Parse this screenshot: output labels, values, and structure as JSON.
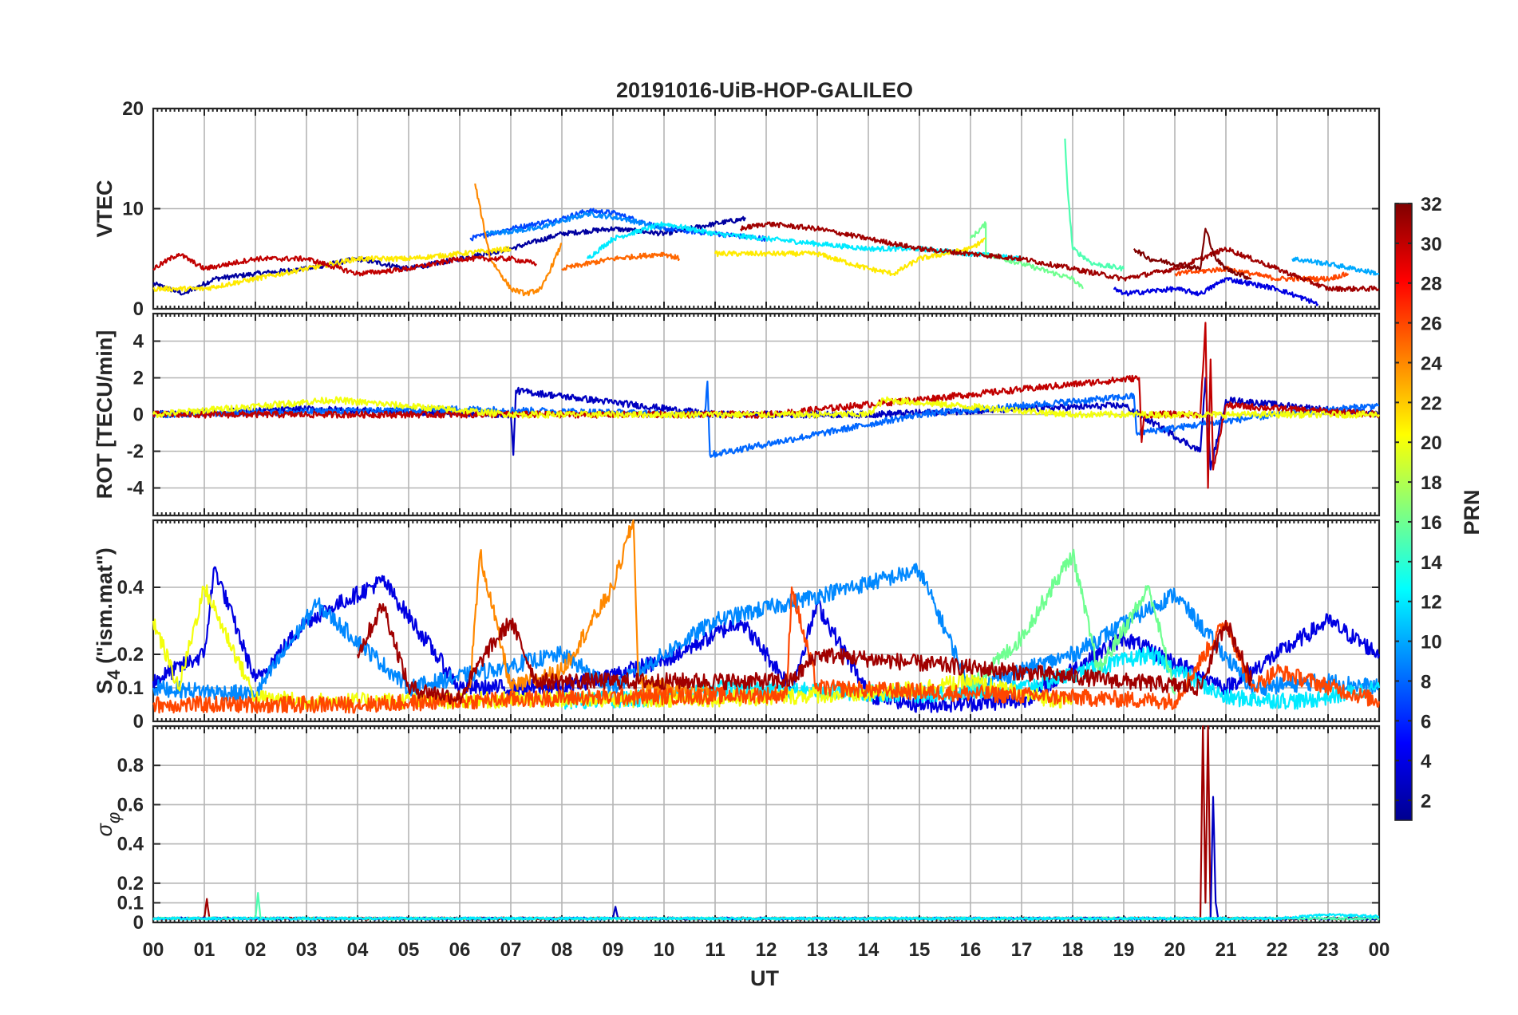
{
  "title": "20191016-UiB-HOP-GALILEO",
  "xaxis": {
    "label": "UT",
    "ticks": [
      "00",
      "01",
      "02",
      "03",
      "04",
      "05",
      "06",
      "07",
      "08",
      "09",
      "10",
      "11",
      "12",
      "13",
      "14",
      "15",
      "16",
      "17",
      "18",
      "19",
      "20",
      "21",
      "22",
      "23",
      "00"
    ]
  },
  "colorbar": {
    "label": "PRN",
    "range": [
      1,
      32
    ],
    "ticks": [
      "2",
      "4",
      "6",
      "8",
      "10",
      "12",
      "14",
      "16",
      "18",
      "20",
      "22",
      "24",
      "26",
      "28",
      "30",
      "32"
    ],
    "colormap": "jet",
    "colors": [
      "#00008f",
      "#0000ff",
      "#0080ff",
      "#00ffff",
      "#80ff80",
      "#ffff00",
      "#ff8000",
      "#ff0000",
      "#800000"
    ]
  },
  "chart_data": [
    {
      "type": "line",
      "id": "vtec",
      "ylabel": "VTEC",
      "ylim": [
        0,
        20
      ],
      "yticks": [
        0,
        10,
        20
      ],
      "ytick_labels": [
        "0",
        "10",
        "20"
      ],
      "xlim": [
        0,
        24
      ],
      "series": [
        {
          "prn": 2,
          "x": [
            0,
            0.6,
            1.2,
            2,
            3,
            4,
            5,
            6,
            7,
            8,
            9,
            10,
            11,
            11.6
          ],
          "y": [
            2.5,
            1.5,
            3,
            3.5,
            4,
            5,
            4,
            5,
            6,
            7.5,
            8,
            7.5,
            8.5,
            9
          ]
        },
        {
          "prn": 7,
          "x": [
            6.2,
            7,
            8,
            8.5,
            9,
            10,
            11,
            12
          ],
          "y": [
            7,
            8,
            9,
            9.8,
            9.6,
            8,
            7.5,
            7
          ]
        },
        {
          "prn": 9,
          "x": [
            6.5,
            7.5,
            8.5,
            9.2,
            10
          ],
          "y": [
            7.5,
            8,
            9.5,
            9,
            8
          ]
        },
        {
          "prn": 12,
          "x": [
            8.5,
            9,
            10,
            11,
            12,
            13,
            14,
            15,
            16,
            17
          ],
          "y": [
            5,
            7,
            8.5,
            7.5,
            7,
            6.5,
            6,
            6,
            5.5,
            5
          ]
        },
        {
          "prn": 16,
          "x": [
            16,
            16.3,
            16.3,
            17,
            18,
            18.2
          ],
          "y": [
            7,
            8.5,
            5.5,
            4.5,
            3,
            2
          ]
        },
        {
          "prn": 15,
          "x": [
            17.85,
            17.9,
            18,
            18.4,
            19
          ],
          "y": [
            17,
            12,
            6,
            4.5,
            4
          ]
        },
        {
          "prn": 21,
          "x": [
            0,
            1,
            2,
            3,
            4,
            5,
            6,
            7
          ],
          "y": [
            2,
            2,
            3,
            4,
            5,
            5,
            5.5,
            6
          ]
        },
        {
          "prn": 21,
          "x": [
            11,
            12,
            13,
            14,
            14.5,
            15,
            16,
            16.3
          ],
          "y": [
            5.5,
            5.5,
            5.5,
            4,
            3.5,
            5,
            6,
            7
          ]
        },
        {
          "prn": 24,
          "x": [
            6.3,
            6.6,
            7,
            7.3,
            7.6,
            8
          ],
          "y": [
            12.5,
            5,
            2,
            1.5,
            2,
            6.5
          ]
        },
        {
          "prn": 25,
          "x": [
            8,
            9,
            10,
            10.3
          ],
          "y": [
            4,
            5,
            5.5,
            5
          ]
        },
        {
          "prn": 26,
          "x": [
            20,
            21,
            22,
            23,
            23.4
          ],
          "y": [
            3.5,
            4,
            3,
            3,
            3.5
          ]
        },
        {
          "prn": 30,
          "x": [
            0,
            0.5,
            1,
            2,
            3,
            4,
            5,
            6,
            7,
            7.5
          ],
          "y": [
            4,
            5.5,
            4,
            5,
            5,
            3.5,
            4,
            5,
            5,
            4.5
          ]
        },
        {
          "prn": 31,
          "x": [
            11.5,
            12,
            13,
            14,
            15,
            16,
            17,
            18,
            19,
            20,
            20.5,
            21,
            22,
            23,
            24
          ],
          "y": [
            8,
            8.5,
            8,
            7,
            6,
            5.5,
            5,
            4,
            3,
            4,
            5,
            6,
            4,
            2,
            2
          ]
        },
        {
          "prn": 32,
          "x": [
            19.2,
            19.5,
            20.5,
            20.6,
            20.8,
            21,
            21.5
          ],
          "y": [
            6,
            5,
            4,
            8,
            5,
            4,
            3
          ]
        },
        {
          "prn": 10,
          "x": [
            22.3,
            23,
            23.5,
            24
          ],
          "y": [
            5,
            4.5,
            4,
            3.5
          ]
        },
        {
          "prn": 4,
          "x": [
            18.8,
            19,
            20,
            20.5,
            21,
            22,
            22.8
          ],
          "y": [
            2,
            1.5,
            2,
            1.5,
            3,
            2,
            0.5
          ]
        }
      ]
    },
    {
      "type": "line",
      "id": "rot",
      "ylabel": "ROT [TECU/min]",
      "ylim": [
        -5.5,
        5.5
      ],
      "yticks": [
        -4,
        -2,
        0,
        2,
        4
      ],
      "ytick_labels": [
        "-4",
        "-2",
        "0",
        "2",
        "4"
      ],
      "xlim": [
        0,
        24
      ],
      "series": [
        {
          "prn": 3,
          "x": [
            0,
            3,
            7,
            7.05,
            7.1,
            11,
            14,
            19,
            20.5,
            20.6,
            20.7,
            21,
            24
          ],
          "y": [
            0,
            0.3,
            0,
            -2.2,
            1.3,
            0,
            0,
            0.5,
            -2,
            2,
            -3,
            0.8,
            0
          ]
        },
        {
          "prn": 8,
          "x": [
            0,
            6,
            10.8,
            10.85,
            10.9,
            15,
            19.2,
            19.25,
            22,
            24
          ],
          "y": [
            0,
            0.3,
            0,
            1.8,
            -2.2,
            0,
            1,
            -1,
            0,
            0.5
          ]
        },
        {
          "prn": 30,
          "x": [
            0,
            5,
            12,
            19.3,
            19.35,
            19.4,
            20.5,
            20.6,
            20.65,
            20.7,
            20.75,
            21,
            24
          ],
          "y": [
            0,
            0,
            0,
            2,
            -1.5,
            0,
            0,
            5,
            -4,
            3,
            -3,
            0.5,
            0
          ]
        },
        {
          "prn": 20,
          "x": [
            0,
            3.5,
            7,
            14,
            14.3,
            18,
            24
          ],
          "y": [
            0,
            0.8,
            0,
            0,
            0.8,
            0,
            0
          ]
        }
      ]
    },
    {
      "type": "line",
      "id": "s4",
      "ylabel": "S4 (\"ism.mat\")",
      "ylabel_main": "S",
      "ylabel_sub": "4",
      "ylabel_rest": " (\"ism.mat\")",
      "ylim": [
        0,
        0.6
      ],
      "yticks": [
        0,
        0.1,
        0.2,
        0.4
      ],
      "ytick_labels": [
        "0",
        "0.1",
        "0.2",
        "0.4"
      ],
      "xlim": [
        0,
        24
      ],
      "series": [
        {
          "prn": 4,
          "x": [
            0,
            1,
            1.2,
            2,
            3,
            4.5,
            6,
            8,
            10,
            11.5,
            12.5,
            13,
            14,
            15,
            17,
            19,
            21,
            23,
            24
          ],
          "y": [
            0.12,
            0.2,
            0.46,
            0.12,
            0.3,
            0.42,
            0.1,
            0.1,
            0.18,
            0.3,
            0.1,
            0.35,
            0.08,
            0.05,
            0.06,
            0.25,
            0.1,
            0.3,
            0.2
          ]
        },
        {
          "prn": 9,
          "x": [
            0,
            2,
            3.2,
            5,
            8,
            9,
            11,
            15,
            16,
            18,
            20,
            21.5,
            23,
            24
          ],
          "y": [
            0.1,
            0.08,
            0.35,
            0.1,
            0.2,
            0.1,
            0.3,
            0.45,
            0.1,
            0.2,
            0.38,
            0.1,
            0.12,
            0.1
          ]
        },
        {
          "prn": 12,
          "x": [
            8,
            10,
            11,
            15,
            17,
            19.5,
            21,
            22.5,
            24
          ],
          "y": [
            0.06,
            0.07,
            0.1,
            0.08,
            0.1,
            0.2,
            0.07,
            0.06,
            0.1
          ]
        },
        {
          "prn": 16,
          "x": [
            16,
            17,
            18,
            18.5,
            19.5,
            20
          ],
          "y": [
            0.1,
            0.25,
            0.5,
            0.15,
            0.4,
            0.08
          ]
        },
        {
          "prn": 20,
          "x": [
            0,
            0.5,
            1,
            2,
            3,
            4,
            12,
            13,
            14,
            15,
            16,
            17,
            18
          ],
          "y": [
            0.3,
            0.1,
            0.4,
            0.07,
            0.06,
            0.06,
            0.07,
            0.08,
            0.08,
            0.1,
            0.12,
            0.08,
            0.06
          ]
        },
        {
          "prn": 24,
          "x": [
            6.2,
            6.4,
            7,
            8,
            9,
            9.4,
            9.5,
            10,
            11
          ],
          "y": [
            0.1,
            0.5,
            0.1,
            0.15,
            0.4,
            0.6,
            0.12,
            0.1,
            0.09
          ]
        },
        {
          "prn": 26,
          "x": [
            0,
            4,
            8,
            12.4,
            12.5,
            13,
            20,
            21,
            21.5,
            22,
            24
          ],
          "y": [
            0.05,
            0.05,
            0.07,
            0.08,
            0.4,
            0.1,
            0.06,
            0.3,
            0.1,
            0.15,
            0.06
          ]
        },
        {
          "prn": 31,
          "x": [
            4,
            4.5,
            5,
            6,
            6.5,
            7,
            7.5,
            12.5,
            13,
            20.5,
            21,
            21.5
          ],
          "y": [
            0.2,
            0.35,
            0.1,
            0.07,
            0.2,
            0.3,
            0.12,
            0.12,
            0.2,
            0.1,
            0.3,
            0.12
          ]
        }
      ]
    },
    {
      "type": "line",
      "id": "sigma",
      "ylabel": "σφ",
      "ylabel_main": "σ",
      "ylabel_sub": "φ",
      "ylim": [
        0,
        1
      ],
      "yticks": [
        0,
        0.1,
        0.2,
        0.4,
        0.6,
        0.8
      ],
      "ytick_labels": [
        "0",
        "0.1",
        "0.2",
        "0.4",
        "0.6",
        "0.8"
      ],
      "xlim": [
        0,
        24
      ],
      "series": [
        {
          "prn": 31,
          "x": [
            0,
            1,
            1.05,
            1.1,
            20.5,
            20.55,
            20.6,
            20.65,
            20.7,
            21,
            24
          ],
          "y": [
            0.02,
            0.02,
            0.12,
            0.02,
            0.02,
            1,
            0.1,
            1,
            0.02,
            0.02,
            0.02
          ]
        },
        {
          "prn": 3,
          "x": [
            0,
            9,
            9.05,
            9.1,
            20.7,
            20.75,
            20.8,
            20.85,
            24
          ],
          "y": [
            0.02,
            0.02,
            0.08,
            0.02,
            0.02,
            0.64,
            0.1,
            0.02,
            0.02
          ]
        },
        {
          "prn": 15,
          "x": [
            0,
            2,
            2.05,
            2.1,
            24
          ],
          "y": [
            0.02,
            0.02,
            0.15,
            0.02,
            0.02
          ]
        },
        {
          "prn": 12,
          "x": [
            0,
            22,
            23,
            24
          ],
          "y": [
            0.02,
            0.02,
            0.04,
            0.03
          ]
        }
      ]
    }
  ]
}
